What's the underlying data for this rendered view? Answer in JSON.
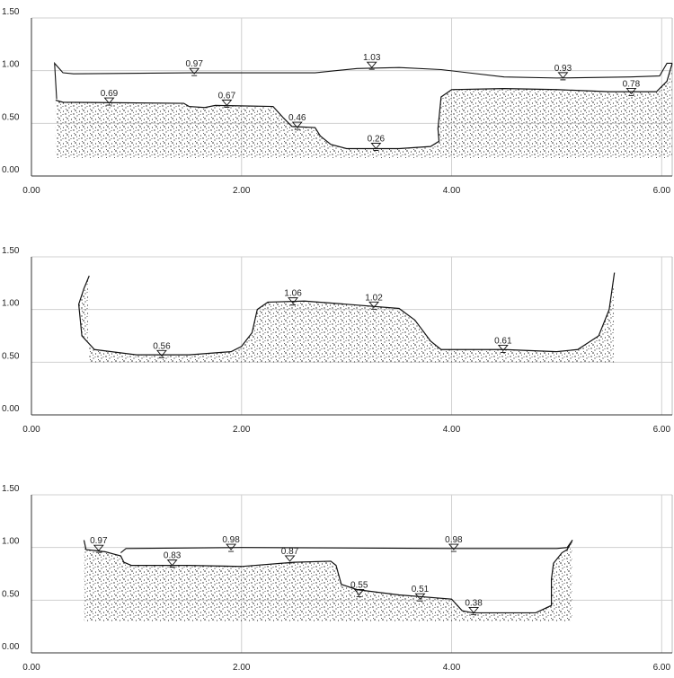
{
  "chart_data": [
    {
      "type": "cross-section",
      "xlim": [
        0,
        6.1
      ],
      "ylim": [
        0,
        1.5
      ],
      "xticks": [
        {
          "value": 0,
          "label": "0.00"
        },
        {
          "value": 2,
          "label": "2.00"
        },
        {
          "value": 4,
          "label": "4.00"
        },
        {
          "value": 6,
          "label": "6.00"
        }
      ],
      "yticks": [
        {
          "value": 0,
          "label": "0.00"
        },
        {
          "value": 0.5,
          "label": "0.50"
        },
        {
          "value": 1,
          "label": "1.00"
        },
        {
          "value": 1.5,
          "label": "1.50"
        }
      ],
      "grid": true,
      "bed_bottom": 0.17,
      "bed": {
        "x": [
          0.23,
          0.3,
          1.45,
          1.5,
          1.65,
          1.75,
          2.3,
          2.4,
          2.48,
          2.7,
          2.75,
          2.85,
          3.0,
          3.5,
          3.8,
          3.88,
          3.87,
          3.9,
          4.0,
          4.5,
          5.0,
          5.5,
          5.95,
          6.05,
          6.1
        ],
        "values": [
          0.72,
          0.7,
          0.69,
          0.66,
          0.65,
          0.67,
          0.66,
          0.55,
          0.47,
          0.46,
          0.38,
          0.3,
          0.26,
          0.26,
          0.28,
          0.33,
          0.45,
          0.75,
          0.82,
          0.83,
          0.82,
          0.8,
          0.8,
          0.9,
          1.07
        ]
      },
      "water": {
        "x": [
          0.24,
          0.22,
          0.3,
          0.4,
          1.5,
          2.7,
          3.1,
          3.5,
          3.9,
          4.5,
          5.0,
          5.7,
          5.98,
          6.05,
          6.1
        ],
        "values": [
          0.73,
          1.07,
          0.98,
          0.97,
          0.98,
          0.98,
          1.02,
          1.03,
          1.01,
          0.94,
          0.93,
          0.94,
          0.95,
          1.07,
          1.07
        ]
      },
      "levels": {
        "x": [
          1.55,
          3.24,
          5.06,
          0.74,
          1.86,
          2.53,
          3.28,
          5.71
        ],
        "values": [
          0.97,
          1.03,
          0.93,
          0.69,
          0.67,
          0.46,
          0.26,
          0.78
        ]
      }
    },
    {
      "type": "cross-section",
      "xlim": [
        0,
        6.1
      ],
      "ylim": [
        0,
        1.5
      ],
      "xticks": [
        {
          "value": 0,
          "label": "0.00"
        },
        {
          "value": 2,
          "label": "2.00"
        },
        {
          "value": 4,
          "label": "4.00"
        },
        {
          "value": 6,
          "label": "6.00"
        }
      ],
      "yticks": [
        {
          "value": 0,
          "label": "0.00"
        },
        {
          "value": 0.5,
          "label": "0.50"
        },
        {
          "value": 1,
          "label": "1.00"
        },
        {
          "value": 1.5,
          "label": "1.50"
        }
      ],
      "grid": true,
      "bed_bottom": 0.5,
      "bed": {
        "x": [
          0.55,
          0.5,
          0.45,
          0.48,
          0.6,
          1.0,
          1.5,
          1.9,
          2.0,
          2.1,
          2.15,
          2.25,
          2.6,
          3.0,
          3.5,
          3.65,
          3.8,
          3.9,
          4.5,
          5.0,
          5.2,
          5.4,
          5.5,
          5.55
        ],
        "values": [
          1.32,
          1.2,
          1.05,
          0.75,
          0.62,
          0.57,
          0.57,
          0.6,
          0.65,
          0.78,
          1.0,
          1.07,
          1.08,
          1.05,
          1.01,
          0.9,
          0.7,
          0.62,
          0.62,
          0.6,
          0.62,
          0.75,
          1.0,
          1.35
        ]
      },
      "levels": {
        "x": [
          2.49,
          3.26,
          1.24,
          4.49
        ],
        "values": [
          1.06,
          1.02,
          0.56,
          0.61
        ]
      }
    },
    {
      "type": "cross-section",
      "xlim": [
        0,
        6.1
      ],
      "ylim": [
        0,
        1.5
      ],
      "xticks": [
        {
          "value": 0,
          "label": "0.00"
        },
        {
          "value": 2,
          "label": "2.00"
        },
        {
          "value": 4,
          "label": "4.00"
        },
        {
          "value": 6,
          "label": "6.00"
        }
      ],
      "yticks": [
        {
          "value": 0,
          "label": "0.00"
        },
        {
          "value": 0.5,
          "label": "0.50"
        },
        {
          "value": 1,
          "label": "1.00"
        },
        {
          "value": 1.5,
          "label": "1.50"
        }
      ],
      "grid": true,
      "bed_bottom": 0.3,
      "bed": {
        "x": [
          0.5,
          0.52,
          0.7,
          0.85,
          0.88,
          0.95,
          1.5,
          2.0,
          2.5,
          2.85,
          2.9,
          2.95,
          3.1,
          3.5,
          4.0,
          4.1,
          4.2,
          4.8,
          4.95,
          4.95,
          4.97,
          5.05,
          5.1,
          5.15
        ],
        "values": [
          1.07,
          0.98,
          0.96,
          0.92,
          0.86,
          0.83,
          0.83,
          0.82,
          0.86,
          0.87,
          0.83,
          0.65,
          0.6,
          0.55,
          0.51,
          0.4,
          0.38,
          0.38,
          0.45,
          0.7,
          0.85,
          0.95,
          0.98,
          1.07
        ]
      },
      "water": {
        "x": [
          0.85,
          0.9,
          2.0,
          4.0,
          5.0,
          5.1,
          5.15
        ],
        "values": [
          0.95,
          0.99,
          1.0,
          0.99,
          0.99,
          1.0,
          1.07
        ]
      },
      "levels": {
        "x": [
          0.64,
          1.9,
          4.02,
          1.34,
          2.46,
          3.12,
          3.7,
          4.21
        ],
        "values": [
          0.97,
          0.98,
          0.98,
          0.83,
          0.87,
          0.55,
          0.51,
          0.38
        ]
      }
    }
  ]
}
